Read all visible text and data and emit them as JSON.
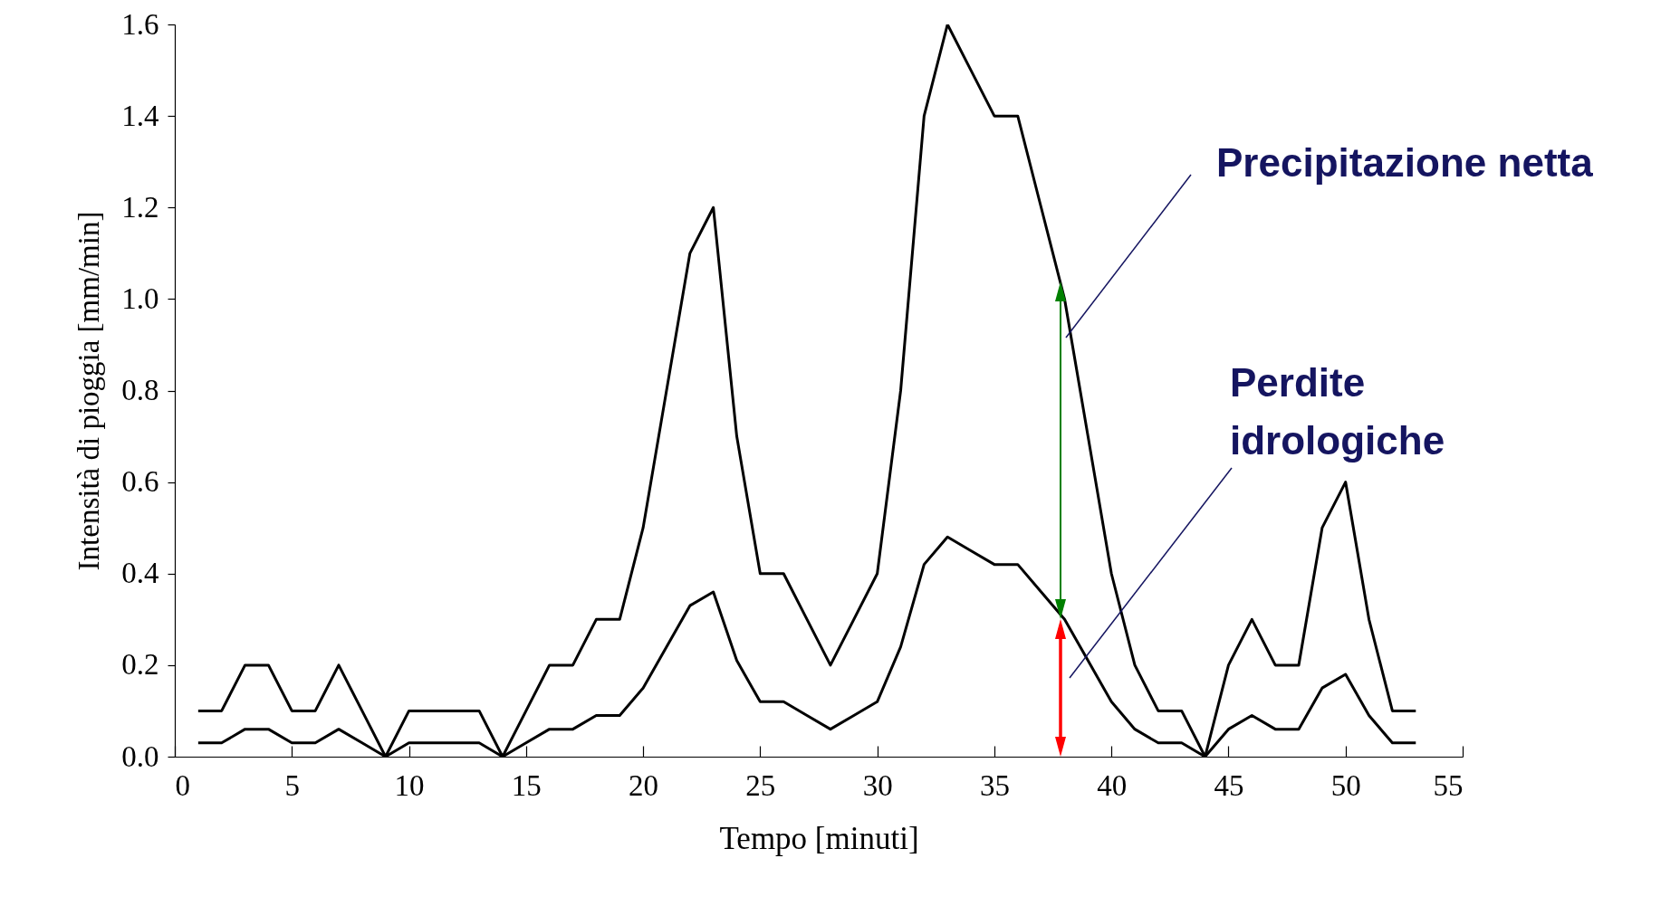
{
  "chart_data": {
    "type": "line",
    "xlabel": "Tempo  [minuti]",
    "ylabel": "Intensità di pioggia  [mm/min]",
    "x": [
      1,
      2,
      3,
      4,
      5,
      6,
      7,
      8,
      9,
      10,
      11,
      12,
      13,
      14,
      15,
      16,
      17,
      18,
      19,
      20,
      21,
      22,
      23,
      24,
      25,
      26,
      27,
      28,
      29,
      30,
      31,
      32,
      33,
      34,
      35,
      36,
      37,
      38,
      39,
      40,
      41,
      42,
      43,
      44,
      45,
      46,
      47,
      48,
      49,
      50,
      51,
      52,
      53
    ],
    "series": [
      {
        "color": "#000000",
        "values": [
          0.1,
          0.1,
          0.2,
          0.2,
          0.1,
          0.1,
          0.2,
          0.1,
          0,
          0.1,
          0.1,
          0.1,
          0.1,
          0,
          0.1,
          0.2,
          0.2,
          0.3,
          0.3,
          0.5,
          0.8,
          1.1,
          1.2,
          0.7,
          0.4,
          0.4,
          0.3,
          0.2,
          0.3,
          0.4,
          0.8,
          1.4,
          1.6,
          1.5,
          1.4,
          1.4,
          1.2,
          1.0,
          0.7,
          0.4,
          0.2,
          0.1,
          0.1,
          0,
          0.2,
          0.3,
          0.2,
          0.2,
          0.5,
          0.6,
          0.3,
          0.1,
          0.1
        ]
      },
      {
        "color": "#000000",
        "values": [
          0.03,
          0.03,
          0.06,
          0.06,
          0.03,
          0.03,
          0.06,
          0.03,
          0,
          0.03,
          0.03,
          0.03,
          0.03,
          0,
          0.03,
          0.06,
          0.06,
          0.09,
          0.09,
          0.15,
          0.24,
          0.33,
          0.36,
          0.21,
          0.12,
          0.12,
          0.09,
          0.06,
          0.09,
          0.12,
          0.24,
          0.42,
          0.48,
          0.45,
          0.42,
          0.42,
          0.36,
          0.3,
          0.21,
          0.12,
          0.06,
          0.03,
          0.03,
          0,
          0.06,
          0.09,
          0.06,
          0.06,
          0.15,
          0.18,
          0.09,
          0.03,
          0.03
        ]
      }
    ],
    "xlim": [
      0,
      55
    ],
    "xticks": [
      0,
      5,
      10,
      15,
      20,
      25,
      30,
      35,
      40,
      45,
      50,
      55
    ],
    "ylim": [
      0,
      1.6
    ],
    "yticks": [
      {
        "value": 0,
        "label": "0.0"
      },
      0.2,
      0.4,
      0.6,
      0.8,
      {
        "value": 1,
        "label": "1.0"
      },
      1.2,
      1.4,
      1.6
    ],
    "annotations": [
      "Precipitazione netta",
      "Perdite idrologiche"
    ],
    "grid": false,
    "legend": false,
    "marker": "none",
    "line_style": "solid"
  }
}
